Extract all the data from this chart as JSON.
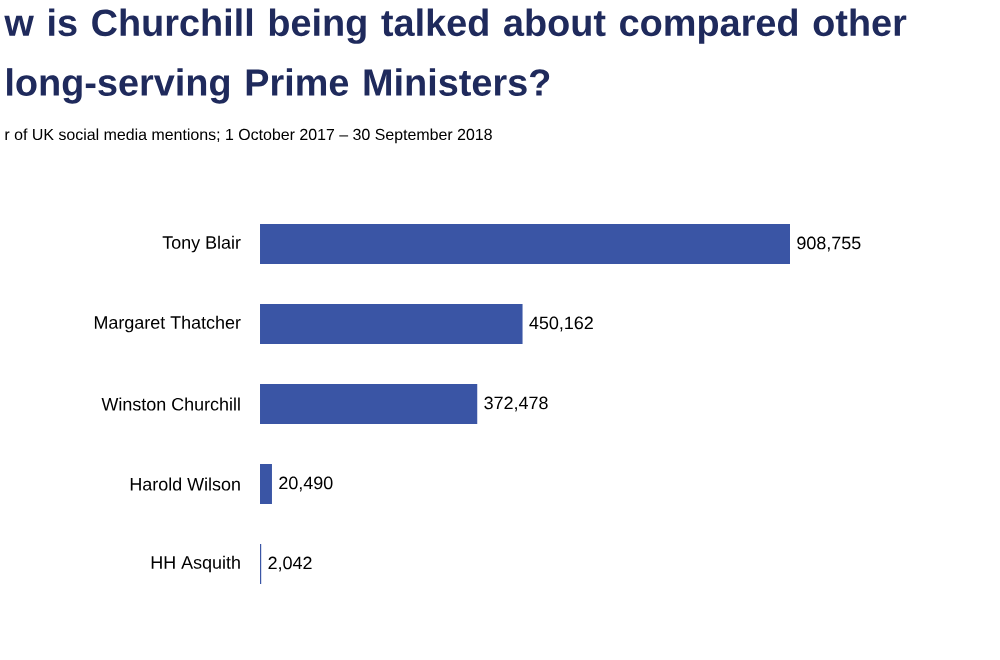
{
  "chart_data": {
    "type": "bar",
    "orientation": "horizontal",
    "title": "w is Churchill being talked about compared other long-serving Prime Ministers?",
    "subtitle": "r of UK social media mentions; 1 October 2017 – 30 September 2018",
    "categories": [
      "Tony Blair",
      "Margaret Thatcher",
      "Winston Churchill",
      "Harold Wilson",
      "HH Asquith"
    ],
    "values": [
      908755,
      450162,
      372478,
      20490,
      2042
    ],
    "value_labels": [
      "908,755",
      "450,162",
      "372,478",
      "20,490",
      "2,042"
    ],
    "color": "#3a55a5"
  }
}
